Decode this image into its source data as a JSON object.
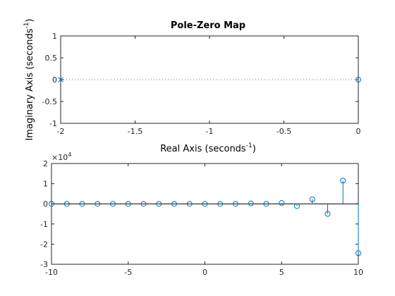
{
  "chart_data": [
    {
      "type": "scatter",
      "title": "Pole-Zero Map",
      "xlabel": {
        "text": "Real Axis (seconds",
        "sup": "-1",
        "close": ")"
      },
      "ylabel": {
        "text": "Imaginary Axis (seconds",
        "sup": "-1",
        "close": ")"
      },
      "xlim": [
        -2,
        0
      ],
      "ylim": [
        -1,
        1
      ],
      "xticks": [
        -2,
        -1.5,
        -1,
        -0.5,
        0
      ],
      "xtick_labels": [
        "-2",
        "-1.5",
        "-1",
        "-0.5",
        "0"
      ],
      "yticks": [
        -1,
        -0.5,
        0,
        0.5,
        1
      ],
      "ytick_labels": [
        "-1",
        "-0.5",
        "0",
        "0.5",
        "1"
      ],
      "zero_line": "dotted",
      "grid": false,
      "poles": [
        {
          "x": -2,
          "y": 0
        }
      ],
      "zeros": [
        {
          "x": 0,
          "y": 0
        }
      ],
      "color": "#0072BD"
    },
    {
      "type": "stem",
      "title": "",
      "xlim": [
        -10,
        10
      ],
      "ylim": [
        -30000,
        20000
      ],
      "xticks": [
        -10,
        -5,
        0,
        5,
        10
      ],
      "xtick_labels": [
        "-10",
        "-5",
        "0",
        "5",
        "10"
      ],
      "yticks": [
        -30000,
        -20000,
        -10000,
        0,
        10000,
        20000
      ],
      "ytick_labels": [
        "-3",
        "-2",
        "-1",
        "0",
        "1",
        "2"
      ],
      "exponent_label": {
        "base": "×10",
        "power": "4"
      },
      "grid": false,
      "baseline": 0,
      "color": "#0072BD",
      "x": [
        -10,
        -9,
        -8,
        -7,
        -6,
        -5,
        -4,
        -3,
        -2,
        -1,
        0,
        1,
        2,
        3,
        4,
        5,
        6,
        7,
        8,
        9,
        10
      ],
      "y": [
        0,
        0,
        0,
        0,
        0,
        0,
        0,
        0,
        0,
        0,
        0,
        0,
        0,
        200,
        0,
        400,
        -1100,
        2200,
        -5000,
        11500,
        -24500
      ]
    }
  ]
}
